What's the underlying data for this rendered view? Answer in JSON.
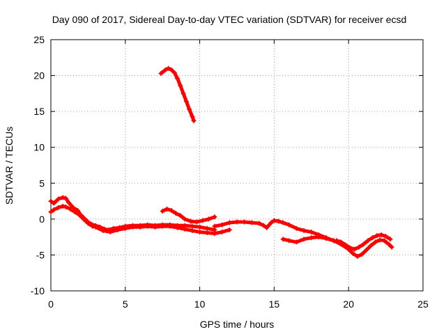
{
  "chart_data": {
    "type": "scatter",
    "title": "Day 090 of 2017, Sidereal Day-to-day VTEC variation (SDTVAR) for receiver ecsd",
    "xlabel": "GPS time / hours",
    "ylabel": "SDTVAR / TECUs",
    "xlim": [
      0,
      25
    ],
    "ylim": [
      -10,
      25
    ],
    "xticks": [
      0,
      5,
      10,
      15,
      20,
      25
    ],
    "yticks": [
      -10,
      -5,
      0,
      5,
      10,
      15,
      20,
      25
    ],
    "xtick_labels": [
      "0",
      "5",
      "10",
      "15",
      "20",
      "25"
    ],
    "ytick_labels": [
      "-10",
      "-5",
      "0",
      "5",
      "10",
      "15",
      "20",
      "25"
    ],
    "grid": true,
    "legend": "none",
    "marker": "plus",
    "series": [
      {
        "name": "early-track",
        "color": "#ff0000",
        "points": [
          [
            0.0,
            2.5
          ],
          [
            0.2,
            2.2
          ],
          [
            0.5,
            2.8
          ],
          [
            0.8,
            3.0
          ],
          [
            1.0,
            2.9
          ],
          [
            1.2,
            2.3
          ],
          [
            1.5,
            1.6
          ],
          [
            1.8,
            1.2
          ],
          [
            2.0,
            0.6
          ],
          [
            2.2,
            0.2
          ],
          [
            2.5,
            -0.4
          ],
          [
            2.8,
            -0.8
          ],
          [
            3.0,
            -0.9
          ],
          [
            3.3,
            -1.1
          ],
          [
            3.6,
            -1.4
          ],
          [
            3.9,
            -1.5
          ],
          [
            4.2,
            -1.3
          ],
          [
            4.6,
            -1.2
          ],
          [
            5.0,
            -1.0
          ],
          [
            5.5,
            -0.9
          ],
          [
            6.0,
            -0.9
          ],
          [
            6.5,
            -0.8
          ],
          [
            7.0,
            -0.9
          ],
          [
            7.5,
            -0.8
          ],
          [
            8.0,
            -0.8
          ],
          [
            8.5,
            -0.9
          ],
          [
            9.0,
            -0.9
          ],
          [
            9.5,
            -1.0
          ],
          [
            10.0,
            -1.1
          ],
          [
            10.5,
            -1.3
          ],
          [
            11.0,
            -1.5
          ]
        ]
      },
      {
        "name": "early-track-lower",
        "color": "#ff0000",
        "points": [
          [
            0.0,
            1.0
          ],
          [
            0.2,
            1.3
          ],
          [
            0.5,
            1.6
          ],
          [
            0.8,
            1.8
          ],
          [
            1.0,
            1.7
          ],
          [
            1.3,
            1.4
          ],
          [
            1.6,
            1.0
          ],
          [
            1.9,
            0.6
          ],
          [
            2.2,
            0.0
          ],
          [
            2.5,
            -0.6
          ],
          [
            2.8,
            -1.0
          ],
          [
            3.0,
            -1.1
          ],
          [
            3.5,
            -1.6
          ],
          [
            4.0,
            -1.8
          ],
          [
            4.5,
            -1.5
          ],
          [
            5.0,
            -1.3
          ],
          [
            5.5,
            -1.1
          ],
          [
            6.0,
            -1.1
          ],
          [
            6.5,
            -1.0
          ],
          [
            7.0,
            -1.1
          ],
          [
            7.5,
            -1.0
          ],
          [
            8.0,
            -1.0
          ],
          [
            8.5,
            -1.2
          ],
          [
            9.0,
            -1.4
          ],
          [
            9.5,
            -1.6
          ],
          [
            10.0,
            -1.8
          ],
          [
            10.5,
            -1.9
          ],
          [
            11.0,
            -2.0
          ],
          [
            11.5,
            -1.8
          ],
          [
            12.0,
            -1.5
          ]
        ]
      },
      {
        "name": "arc-8h",
        "color": "#ff0000",
        "points": [
          [
            7.5,
            1.1
          ],
          [
            7.8,
            1.4
          ],
          [
            8.1,
            1.2
          ],
          [
            8.4,
            0.8
          ],
          [
            8.7,
            0.5
          ],
          [
            9.0,
            0.0
          ],
          [
            9.4,
            -0.3
          ],
          [
            9.8,
            -0.4
          ],
          [
            10.2,
            -0.2
          ],
          [
            10.6,
            0.0
          ],
          [
            11.0,
            0.3
          ]
        ]
      },
      {
        "name": "mid-track",
        "color": "#ff0000",
        "points": [
          [
            11.0,
            -1.0
          ],
          [
            11.5,
            -0.8
          ],
          [
            12.0,
            -0.5
          ],
          [
            12.5,
            -0.4
          ],
          [
            13.0,
            -0.4
          ],
          [
            13.5,
            -0.5
          ],
          [
            14.0,
            -0.6
          ],
          [
            14.3,
            -0.9
          ],
          [
            14.5,
            -1.2
          ],
          [
            14.8,
            -0.5
          ],
          [
            15.0,
            -0.2
          ],
          [
            15.3,
            -0.3
          ],
          [
            15.6,
            -0.5
          ],
          [
            16.0,
            -0.8
          ],
          [
            16.5,
            -1.3
          ],
          [
            17.0,
            -1.6
          ],
          [
            17.5,
            -1.8
          ],
          [
            18.0,
            -2.2
          ],
          [
            18.5,
            -2.6
          ],
          [
            19.0,
            -3.0
          ],
          [
            19.5,
            -3.5
          ],
          [
            19.8,
            -3.8
          ]
        ]
      },
      {
        "name": "late-track",
        "color": "#ff0000",
        "points": [
          [
            15.6,
            -2.8
          ],
          [
            16.0,
            -3.0
          ],
          [
            16.5,
            -3.2
          ],
          [
            17.0,
            -2.8
          ],
          [
            17.5,
            -2.6
          ],
          [
            18.0,
            -2.5
          ],
          [
            18.5,
            -2.7
          ],
          [
            19.0,
            -3.0
          ],
          [
            19.5,
            -3.5
          ],
          [
            20.0,
            -4.2
          ],
          [
            20.3,
            -4.8
          ],
          [
            20.6,
            -5.2
          ],
          [
            20.9,
            -4.9
          ],
          [
            21.2,
            -4.3
          ],
          [
            21.5,
            -3.7
          ],
          [
            21.8,
            -3.2
          ],
          [
            22.1,
            -2.9
          ],
          [
            22.4,
            -3.0
          ],
          [
            22.7,
            -3.5
          ],
          [
            22.9,
            -3.9
          ]
        ]
      },
      {
        "name": "late-track-upper",
        "color": "#ff0000",
        "points": [
          [
            19.2,
            -3.0
          ],
          [
            19.5,
            -3.2
          ],
          [
            19.8,
            -3.6
          ],
          [
            20.1,
            -4.0
          ],
          [
            20.4,
            -4.2
          ],
          [
            20.7,
            -3.9
          ],
          [
            21.0,
            -3.5
          ],
          [
            21.3,
            -3.0
          ],
          [
            21.6,
            -2.6
          ],
          [
            21.9,
            -2.3
          ],
          [
            22.2,
            -2.2
          ],
          [
            22.5,
            -2.4
          ],
          [
            22.8,
            -2.8
          ]
        ]
      },
      {
        "name": "high-arc",
        "color": "#ff0000",
        "points": [
          [
            7.4,
            20.3
          ],
          [
            7.7,
            20.8
          ],
          [
            7.9,
            21.0
          ],
          [
            8.1,
            20.8
          ],
          [
            8.3,
            20.4
          ],
          [
            8.5,
            19.6
          ],
          [
            8.7,
            18.6
          ],
          [
            8.9,
            17.5
          ],
          [
            9.1,
            16.4
          ],
          [
            9.3,
            15.3
          ],
          [
            9.5,
            14.3
          ],
          [
            9.6,
            13.7
          ]
        ]
      }
    ]
  }
}
